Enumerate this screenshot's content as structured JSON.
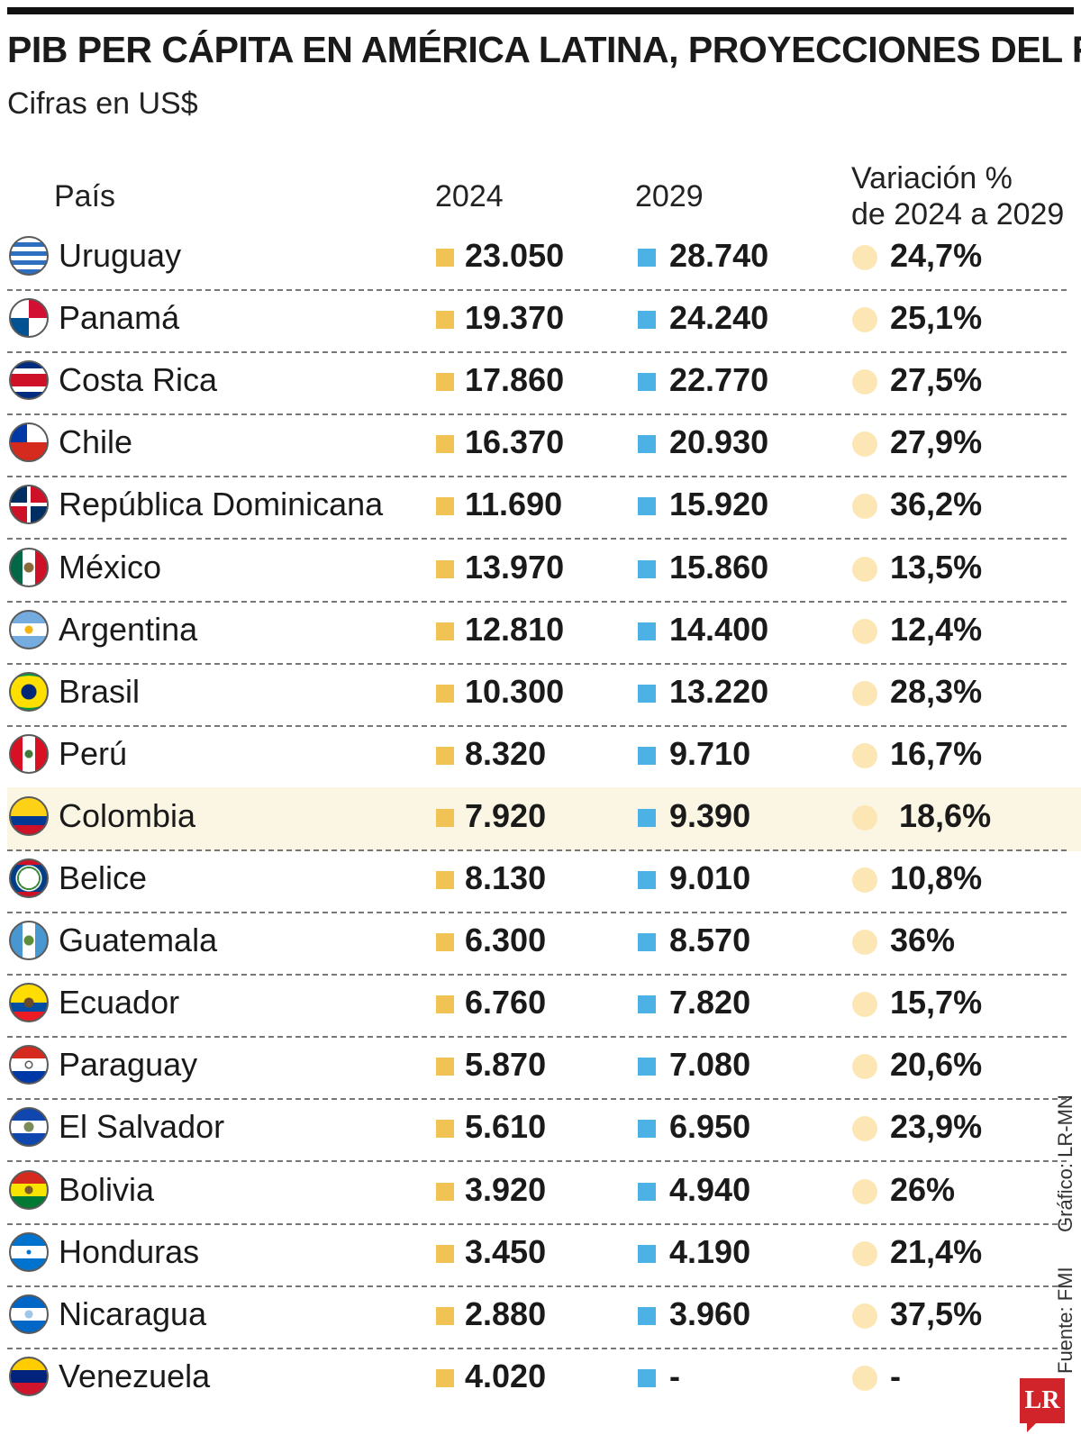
{
  "title": "PIB PER CÁPITA EN AMÉRICA LATINA, PROYECCIONES DEL FMI",
  "subtitle": "Cifras en US$",
  "headers": {
    "country": "País",
    "y2024": "2024",
    "y2029": "2029",
    "variation_line1": "Variación %",
    "variation_line2": "de 2024 a 2029"
  },
  "colors": {
    "y2024": "#f0c354",
    "y2029": "#4cb2e6",
    "variation": "#fce6b4",
    "highlight": "#fbf6e4"
  },
  "credits": {
    "grafico": "Gráfico: LR-MN",
    "fuente": "Fuente: FMI",
    "logo": "LR"
  },
  "chart_data": {
    "type": "table",
    "title": "PIB PER CÁPITA EN AMÉRICA LATINA, PROYECCIONES DEL FMI",
    "subtitle": "Cifras en US$",
    "columns": [
      "País",
      "2024",
      "2029",
      "Variación % de 2024 a 2029"
    ],
    "rows": [
      {
        "country": "Uruguay",
        "v2024": "23.050",
        "v2029": "28.740",
        "variation": "24,7%",
        "flag": "uruguay-flag-icon"
      },
      {
        "country": "Panamá",
        "v2024": "19.370",
        "v2029": "24.240",
        "variation": "25,1%",
        "flag": "panama-flag-icon"
      },
      {
        "country": "Costa Rica",
        "v2024": "17.860",
        "v2029": "22.770",
        "variation": "27,5%",
        "flag": "costa-rica-flag-icon"
      },
      {
        "country": "Chile",
        "v2024": "16.370",
        "v2029": "20.930",
        "variation": "27,9%",
        "flag": "chile-flag-icon"
      },
      {
        "country": "República Dominicana",
        "v2024": "11.690",
        "v2029": "15.920",
        "variation": "36,2%",
        "flag": "dominican-republic-flag-icon"
      },
      {
        "country": "México",
        "v2024": "13.970",
        "v2029": "15.860",
        "variation": "13,5%",
        "flag": "mexico-flag-icon"
      },
      {
        "country": "Argentina",
        "v2024": "12.810",
        "v2029": "14.400",
        "variation": "12,4%",
        "flag": "argentina-flag-icon"
      },
      {
        "country": "Brasil",
        "v2024": "10.300",
        "v2029": "13.220",
        "variation": "28,3%",
        "flag": "brazil-flag-icon"
      },
      {
        "country": "Perú",
        "v2024": "8.320",
        "v2029": "9.710",
        "variation": "16,7%",
        "flag": "peru-flag-icon"
      },
      {
        "country": "Colombia",
        "v2024": "7.920",
        "v2029": "9.390",
        "variation": "18,6%",
        "flag": "colombia-flag-icon",
        "highlight": true
      },
      {
        "country": "Belice",
        "v2024": "8.130",
        "v2029": "9.010",
        "variation": "10,8%",
        "flag": "belize-flag-icon"
      },
      {
        "country": "Guatemala",
        "v2024": "6.300",
        "v2029": "8.570",
        "variation": "36%",
        "flag": "guatemala-flag-icon"
      },
      {
        "country": "Ecuador",
        "v2024": "6.760",
        "v2029": "7.820",
        "variation": "15,7%",
        "flag": "ecuador-flag-icon"
      },
      {
        "country": "Paraguay",
        "v2024": "5.870",
        "v2029": "7.080",
        "variation": "20,6%",
        "flag": "paraguay-flag-icon"
      },
      {
        "country": "El Salvador",
        "v2024": "5.610",
        "v2029": "6.950",
        "variation": "23,9%",
        "flag": "el-salvador-flag-icon"
      },
      {
        "country": "Bolivia",
        "v2024": "3.920",
        "v2029": "4.940",
        "variation": "26%",
        "flag": "bolivia-flag-icon"
      },
      {
        "country": "Honduras",
        "v2024": "3.450",
        "v2029": "4.190",
        "variation": "21,4%",
        "flag": "honduras-flag-icon"
      },
      {
        "country": "Nicaragua",
        "v2024": "2.880",
        "v2029": "3.960",
        "variation": "37,5%",
        "flag": "nicaragua-flag-icon"
      },
      {
        "country": "Venezuela",
        "v2024": "4.020",
        "v2029": "-",
        "variation": "-",
        "flag": "venezuela-flag-icon"
      }
    ]
  }
}
